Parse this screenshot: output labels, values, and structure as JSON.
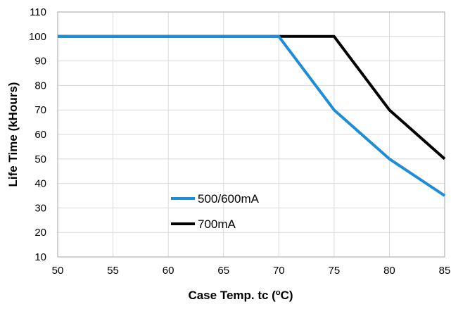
{
  "chart_data": {
    "type": "line",
    "title": "",
    "xlabel": "Case Temp. tc (",
    "xlabel_sup": "o",
    "xlabel_unit": "C)",
    "ylabel": "Life Time (kHours)",
    "xlim": [
      50,
      85
    ],
    "ylim": [
      10,
      110
    ],
    "xticks": [
      50,
      55,
      60,
      65,
      70,
      75,
      80,
      85
    ],
    "yticks": [
      10,
      20,
      30,
      40,
      50,
      60,
      70,
      80,
      90,
      100,
      110
    ],
    "grid": true,
    "legend_position": "lower-center",
    "series": [
      {
        "name": "500/600mA",
        "color": "#1f8dd6",
        "x": [
          50,
          70,
          75,
          80,
          85
        ],
        "y": [
          100,
          100,
          70,
          50,
          35
        ]
      },
      {
        "name": "700mA",
        "color": "#000000",
        "x": [
          50,
          75,
          80,
          85
        ],
        "y": [
          100,
          100,
          70,
          50
        ]
      }
    ]
  }
}
